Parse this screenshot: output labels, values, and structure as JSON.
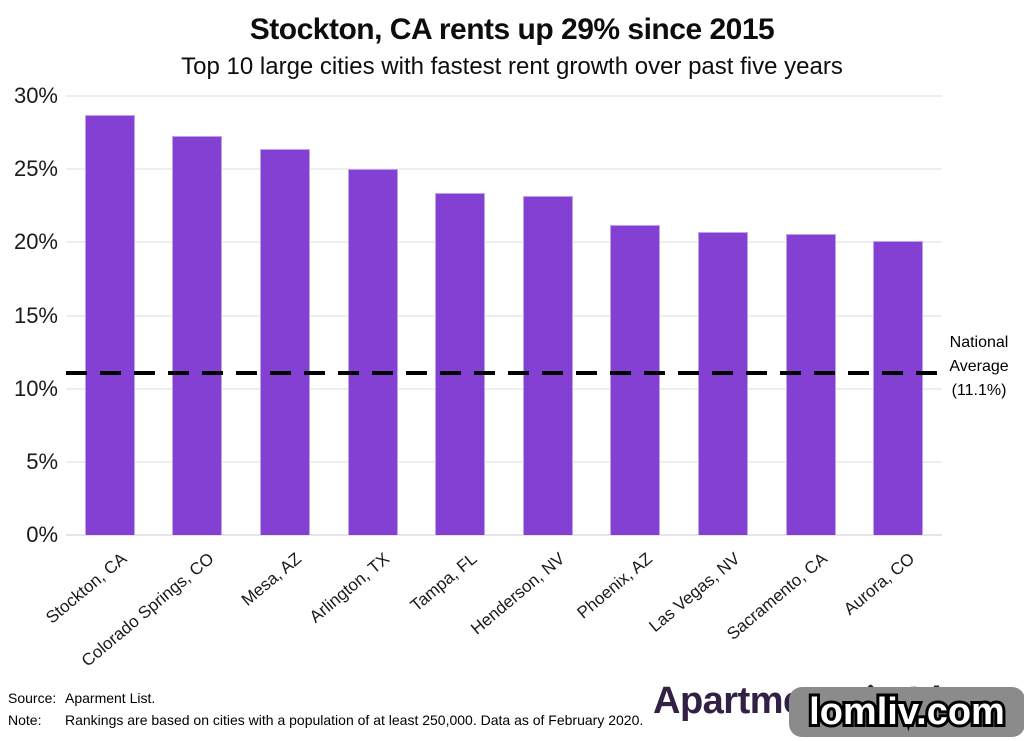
{
  "title": "Stockton, CA rents up 29% since 2015",
  "subtitle": "Top 10 large cities with fastest rent growth over past five years",
  "chart_data": {
    "type": "bar",
    "categories": [
      "Stockton, CA",
      "Colorado Springs, CO",
      "Mesa, AZ",
      "Arlington, TX",
      "Tampa, FL",
      "Henderson, NV",
      "Phoenix, AZ",
      "Las Vegas, NV",
      "Sacramento, CA",
      "Aurora, CO"
    ],
    "values": [
      28.7,
      27.3,
      26.4,
      25.0,
      23.4,
      23.2,
      21.2,
      20.7,
      20.6,
      20.1
    ],
    "title": "Stockton, CA rents up 29% since 2015",
    "subtitle": "Top 10 large cities with fastest rent growth over past five years",
    "xlabel": "",
    "ylabel": "",
    "ylim": [
      0,
      30
    ],
    "yticks": [
      0,
      5,
      10,
      15,
      20,
      25,
      30
    ],
    "ytick_labels": [
      "0%",
      "5%",
      "10%",
      "15%",
      "20%",
      "25%",
      "30%"
    ],
    "grid": "horizontal-only",
    "bar_color": "#8340d2",
    "reference_line": {
      "value": 11.1,
      "style": "dashed",
      "color": "#000000",
      "label_lines": [
        "National",
        "Average",
        "(11.1%)"
      ]
    }
  },
  "footer": {
    "source_label": "Source:",
    "source_text": "Aparment List.",
    "note_label": "Note:",
    "note_text": "Rankings are based on cities with a population of at least 250,000. Data as of February 2020."
  },
  "logo": {
    "text_left": "Apartment",
    "text_right": "List",
    "color": "#332145"
  },
  "watermark": {
    "text": "lomliv.com"
  }
}
